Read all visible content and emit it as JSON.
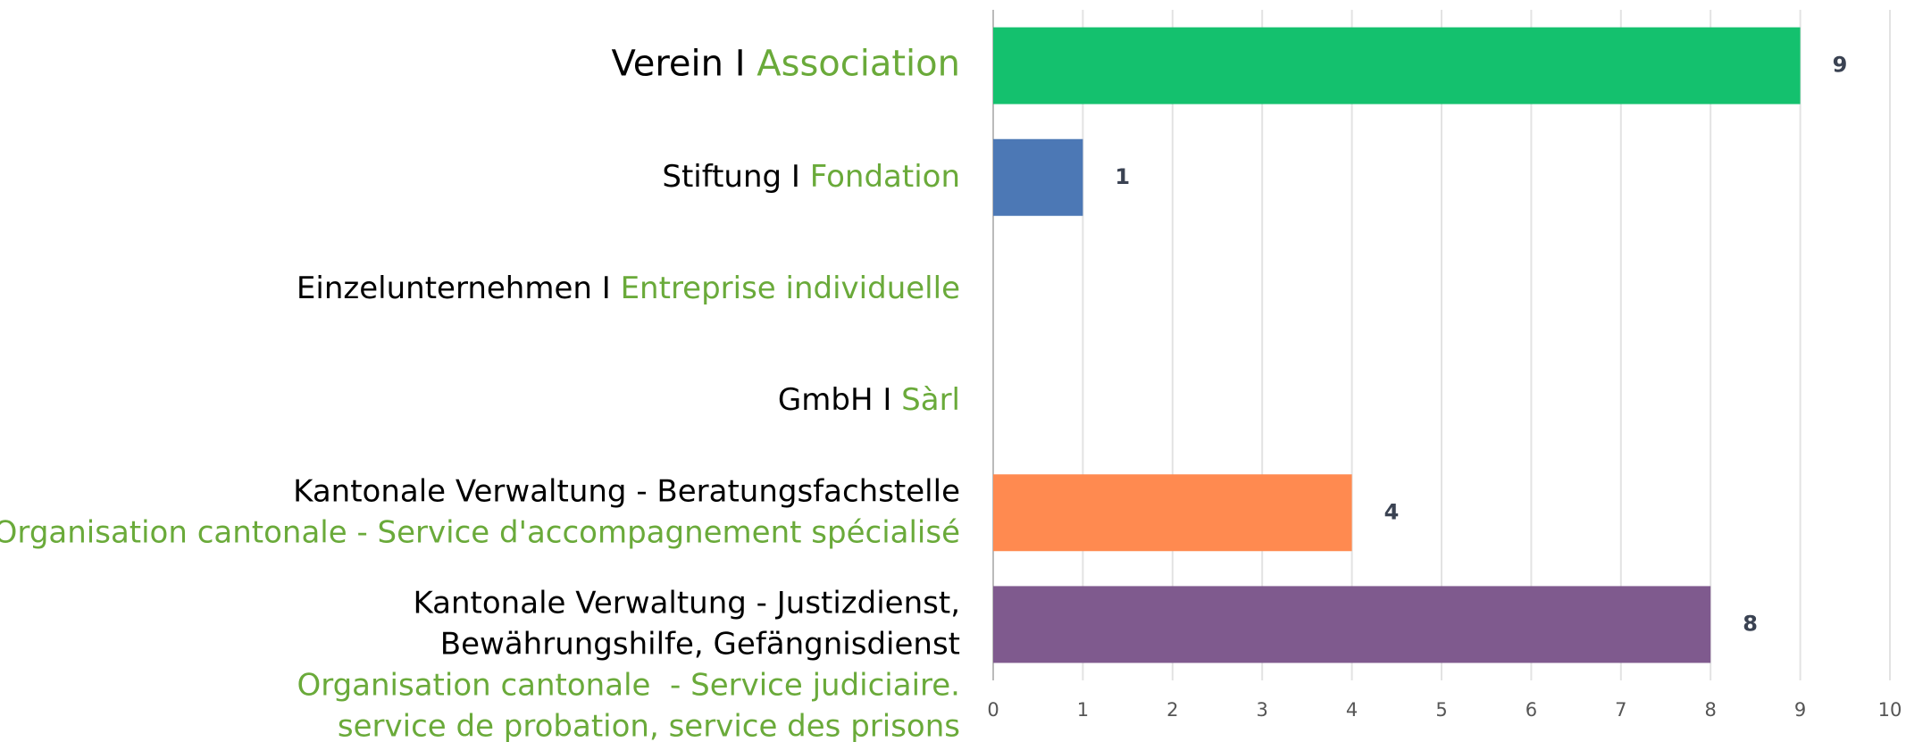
{
  "chart_data": {
    "type": "barh",
    "categories": [
      [
        [
          {
            "lang": "de",
            "text": "Verein I "
          },
          {
            "lang": "fr",
            "text": "Association"
          }
        ]
      ],
      [
        [
          {
            "lang": "de",
            "text": "Stiftung I "
          },
          {
            "lang": "fr",
            "text": "Fondation"
          }
        ]
      ],
      [
        [
          {
            "lang": "de",
            "text": "Einzelunternehmen I "
          },
          {
            "lang": "fr",
            "text": "Entreprise individuelle"
          }
        ]
      ],
      [
        [
          {
            "lang": "de",
            "text": "GmbH I "
          },
          {
            "lang": "fr",
            "text": "Sàrl"
          }
        ]
      ],
      [
        [
          {
            "lang": "de",
            "text": "Kantonale Verwaltung - Beratungsfachstelle"
          }
        ],
        [
          {
            "lang": "fr",
            "text": "Organisation cantonale - Service d'accompagnement spécialisé"
          }
        ]
      ],
      [
        [
          {
            "lang": "de",
            "text": "Kantonale Verwaltung - Justizdienst,"
          }
        ],
        [
          {
            "lang": "de",
            "text": "Bewährungshilfe, Gefängnisdienst"
          }
        ],
        [
          {
            "lang": "fr",
            "text": "Organisation cantonale  - Service judiciaire."
          }
        ],
        [
          {
            "lang": "fr",
            "text": "service de probation, service des prisons"
          }
        ]
      ]
    ],
    "values": [
      9,
      1,
      0,
      0,
      4,
      8
    ],
    "colors": [
      "#14c16e",
      "#4c78b5",
      null,
      null,
      "#ff8a50",
      "#7f5a8e"
    ],
    "label_colors": {
      "de": "#000000",
      "fr": "#6aaa3a"
    },
    "xlim": [
      0,
      10
    ],
    "xticks": [
      0,
      1,
      2,
      3,
      4,
      5,
      6,
      7,
      8,
      9,
      10
    ],
    "grid": true
  }
}
